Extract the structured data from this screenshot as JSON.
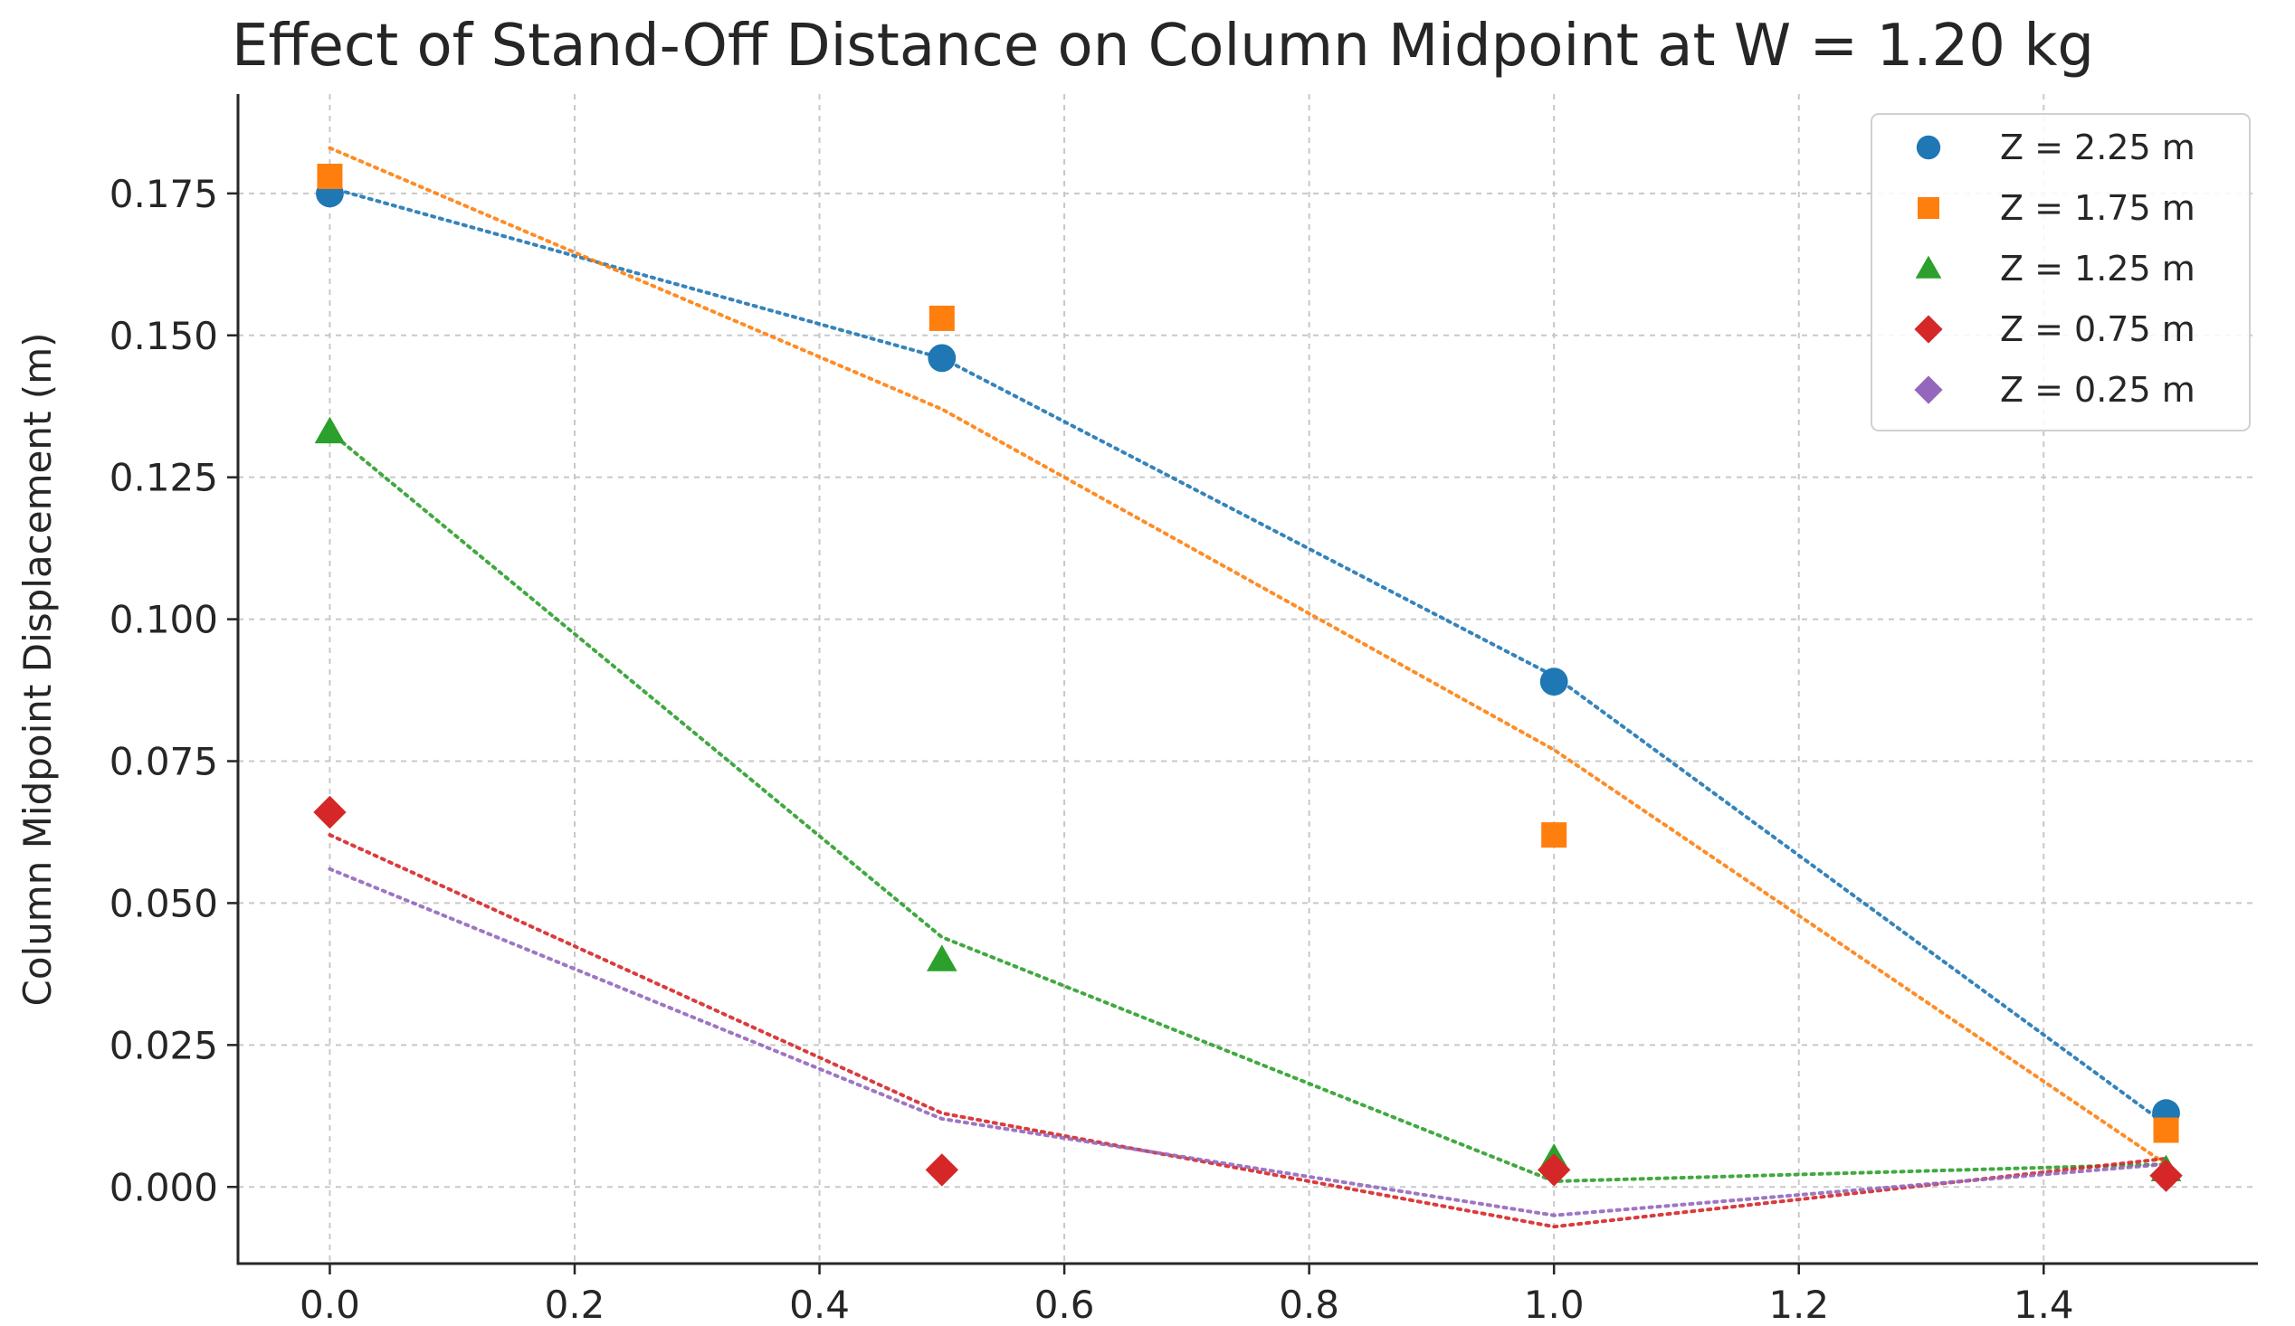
{
  "chart_data": {
    "type": "scatter",
    "title": "Effect of Stand-Off Distance on Column Midpoint at W = 1.20 kg",
    "xlabel": "",
    "ylabel": "Column Midpoint Displacement (m)",
    "xlim": [
      -0.075,
      1.575
    ],
    "ylim": [
      -0.0135,
      0.1925
    ],
    "grid": true,
    "legend_position": "top-right",
    "x_ticks": [
      0.0,
      0.2,
      0.4,
      0.6,
      0.8,
      1.0,
      1.2,
      1.4
    ],
    "x_tick_labels": [
      "0.0",
      "0.2",
      "0.4",
      "0.6",
      "0.8",
      "1.0",
      "1.2",
      "1.4"
    ],
    "y_ticks": [
      0.0,
      0.025,
      0.05,
      0.075,
      0.1,
      0.125,
      0.15,
      0.175
    ],
    "y_tick_labels": [
      "0.000",
      "0.025",
      "0.050",
      "0.075",
      "0.100",
      "0.125",
      "0.150",
      "0.175"
    ],
    "x": [
      0.0,
      0.5,
      1.0,
      1.5
    ],
    "series": [
      {
        "name": "Z = 2.25 m",
        "color": "#1f77b4",
        "marker": "circle",
        "values": [
          0.175,
          0.146,
          0.089,
          0.013
        ],
        "trend": [
          0.176,
          0.146,
          0.09,
          0.011
        ]
      },
      {
        "name": "Z = 1.75 m",
        "color": "#ff7f0e",
        "marker": "square",
        "values": [
          0.178,
          0.153,
          0.062,
          0.01
        ],
        "trend": [
          0.183,
          0.137,
          0.077,
          0.004
        ]
      },
      {
        "name": "Z = 1.25 m",
        "color": "#2ca02c",
        "marker": "triangle",
        "values": [
          0.133,
          0.04,
          0.005,
          0.003
        ],
        "trend": [
          0.133,
          0.044,
          0.001,
          0.004
        ]
      },
      {
        "name": "Z = 0.75 m",
        "color": "#d62728",
        "marker": "diamond",
        "values": [
          0.066,
          0.003,
          0.003,
          0.002
        ],
        "trend": [
          0.062,
          0.013,
          -0.007,
          0.005
        ]
      },
      {
        "name": "Z = 0.25 m",
        "color": "#9467bd",
        "marker": "diamond",
        "values": [
          null,
          null,
          null,
          null
        ],
        "trend": [
          0.056,
          0.012,
          -0.005,
          0.004
        ]
      }
    ]
  }
}
